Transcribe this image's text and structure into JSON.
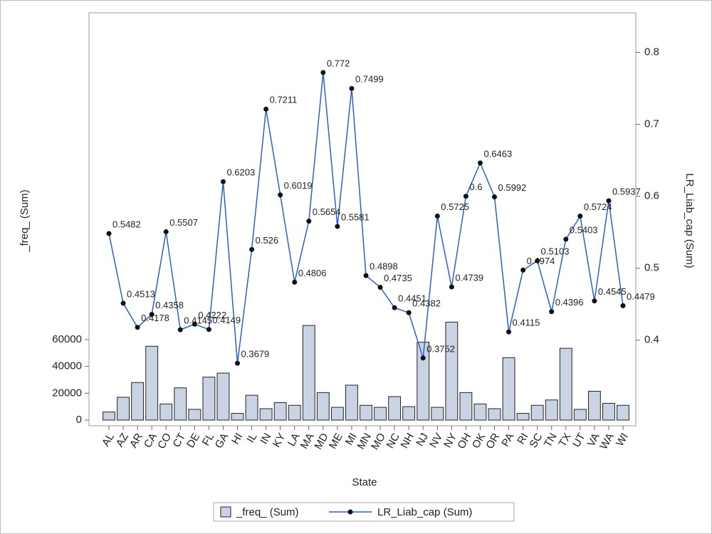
{
  "chart_data": {
    "type": "combo",
    "xlabel": "State",
    "ylabel": "_freq_ (Sum)",
    "y2label": "LR_Liab_cap (Sum)",
    "categories": [
      "AL",
      "AZ",
      "AR",
      "CA",
      "CO",
      "CT",
      "DE",
      "FL",
      "GA",
      "HI",
      "IL",
      "IN",
      "KY",
      "LA",
      "MA",
      "MD",
      "ME",
      "MI",
      "MN",
      "MO",
      "NC",
      "NH",
      "NJ",
      "NV",
      "NY",
      "OH",
      "OK",
      "OR",
      "PA",
      "RI",
      "SC",
      "TN",
      "TX",
      "UT",
      "VA",
      "WA",
      "WI"
    ],
    "series": [
      {
        "name": "_freq_ (Sum)",
        "type": "bar",
        "color": "#c9d3e4",
        "values": [
          6000,
          17000,
          28000,
          55000,
          12000,
          24000,
          8000,
          32000,
          35000,
          5000,
          18500,
          8500,
          13000,
          11000,
          70500,
          20500,
          9500,
          26000,
          11000,
          9500,
          17500,
          10000,
          58000,
          9500,
          73000,
          20500,
          12000,
          8500,
          46500,
          5000,
          11000,
          15000,
          53500,
          8000,
          21500,
          12500,
          11000
        ]
      },
      {
        "name": "LR_Liab_cap (Sum)",
        "type": "line",
        "color": "#2b5fd0",
        "axis": "y2",
        "values": [
          0.5482,
          0.4513,
          0.4178,
          0.4358,
          0.5507,
          0.4145,
          0.4222,
          0.4149,
          0.6203,
          0.3679,
          0.526,
          0.7211,
          0.6019,
          0.4806,
          0.5654,
          0.772,
          0.5581,
          0.7499,
          0.4898,
          0.4735,
          0.4451,
          0.4382,
          0.3752,
          0.5725,
          0.4739,
          0.6,
          0.6463,
          0.5992,
          0.4115,
          0.4974,
          0.5103,
          0.4396,
          0.5403,
          0.5724,
          0.4545,
          0.5937,
          0.4479
        ]
      }
    ],
    "ylim": [
      -4244,
      303450
    ],
    "yticks": [
      0,
      20000,
      40000,
      60000
    ],
    "y2lim": [
      0.281,
      0.855
    ],
    "y2ticks": [
      0.4,
      0.5,
      0.6,
      0.7,
      0.8
    ]
  }
}
